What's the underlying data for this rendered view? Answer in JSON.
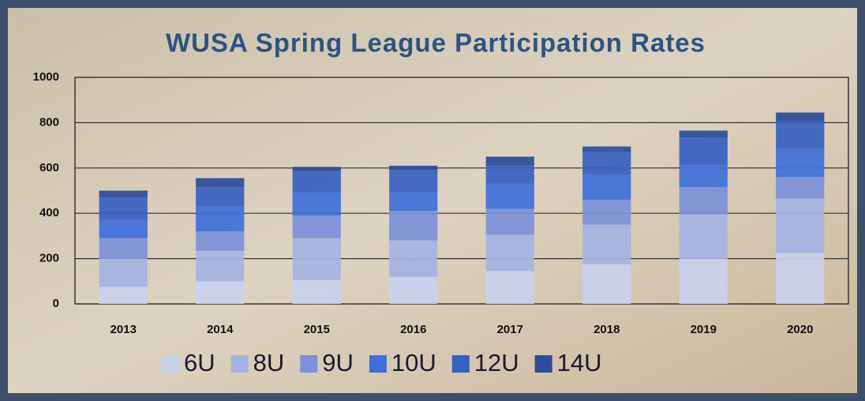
{
  "chart_data": {
    "type": "stacked_bar",
    "title": "WUSA Spring League Participation Rates",
    "categories": [
      "2013",
      "2014",
      "2015",
      "2016",
      "2017",
      "2018",
      "2019",
      "2020"
    ],
    "series": [
      {
        "name": "6U",
        "color": "#c9d0ec",
        "values": [
          75,
          100,
          105,
          120,
          145,
          175,
          200,
          225
        ]
      },
      {
        "name": "8U",
        "color": "#a6b3e2",
        "values": [
          125,
          135,
          185,
          160,
          160,
          175,
          195,
          240
        ]
      },
      {
        "name": "9U",
        "color": "#7d90da",
        "values": [
          90,
          85,
          100,
          130,
          115,
          110,
          120,
          95
        ]
      },
      {
        "name": "10U",
        "color": "#3e6fda",
        "values": [
          80,
          110,
          100,
          80,
          110,
          110,
          100,
          125
        ]
      },
      {
        "name": "12U",
        "color": "#3760c0",
        "values": [
          100,
          85,
          95,
          100,
          80,
          100,
          120,
          120
        ]
      },
      {
        "name": "14U",
        "color": "#2c4c98",
        "values": [
          30,
          40,
          20,
          20,
          40,
          25,
          30,
          40
        ]
      }
    ],
    "ylim": [
      0,
      1000
    ],
    "yticks": [
      0,
      200,
      400,
      600,
      800,
      1000
    ],
    "grid": true,
    "legend": "bottom"
  }
}
